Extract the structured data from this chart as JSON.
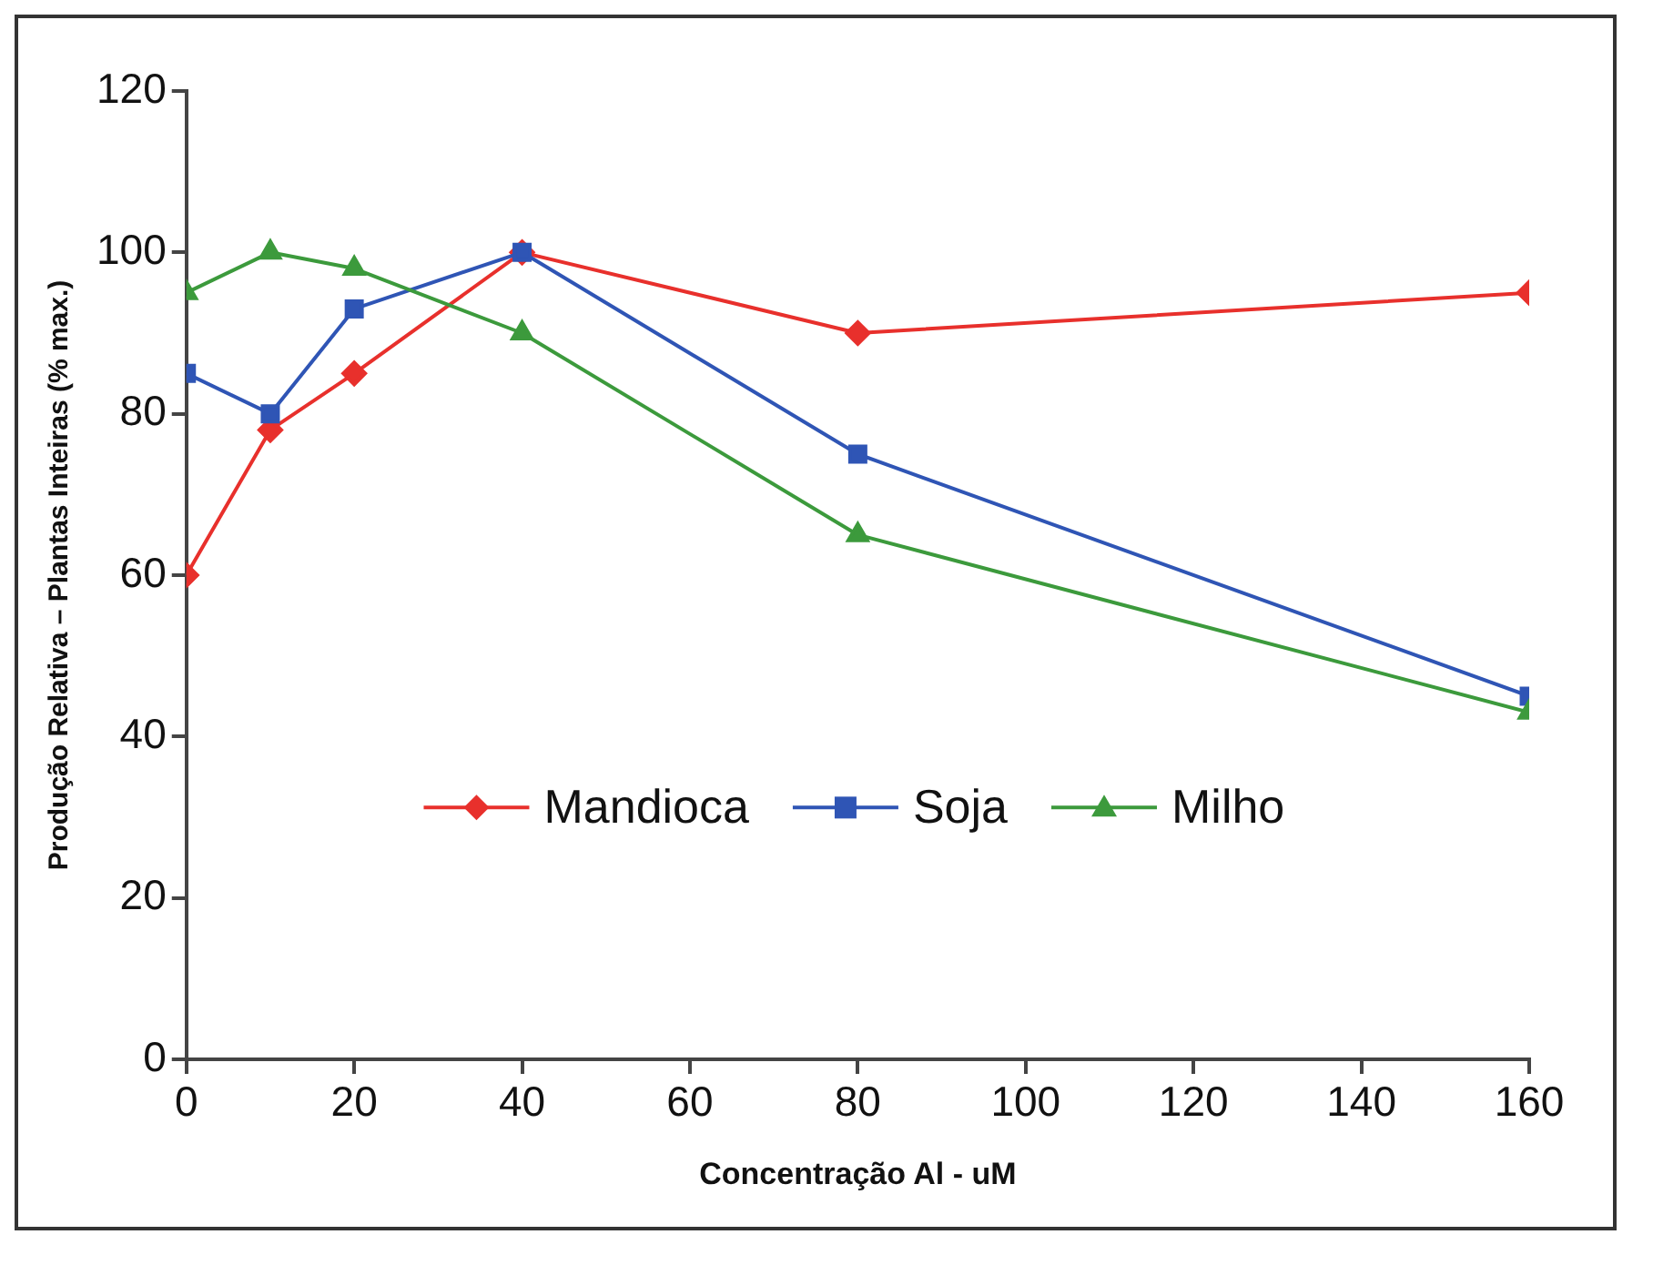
{
  "chart_data": {
    "type": "line",
    "xlabel": "Concentração Al - uM",
    "ylabel": "Produção Relativa – Plantas Inteiras (% max.)",
    "x": [
      0,
      10,
      20,
      40,
      80,
      160
    ],
    "series": [
      {
        "name": "Mandioca",
        "color": "#e8302c",
        "marker": "diamond",
        "values": [
          60,
          78,
          85,
          100,
          90,
          95
        ]
      },
      {
        "name": "Soja",
        "color": "#2f55b5",
        "marker": "square",
        "values": [
          85,
          80,
          93,
          100,
          75,
          45
        ]
      },
      {
        "name": "Milho",
        "color": "#3c9a3c",
        "marker": "triangle",
        "values": [
          95,
          100,
          98,
          90,
          65,
          43
        ]
      }
    ],
    "xlim": [
      0,
      160
    ],
    "xticks": [
      0,
      20,
      40,
      60,
      80,
      100,
      120,
      140,
      160
    ],
    "ylim": [
      0,
      120
    ],
    "yticks": [
      0,
      20,
      40,
      60,
      80,
      100,
      120
    ],
    "grid": false,
    "legend": "center",
    "line_style": "solid"
  }
}
